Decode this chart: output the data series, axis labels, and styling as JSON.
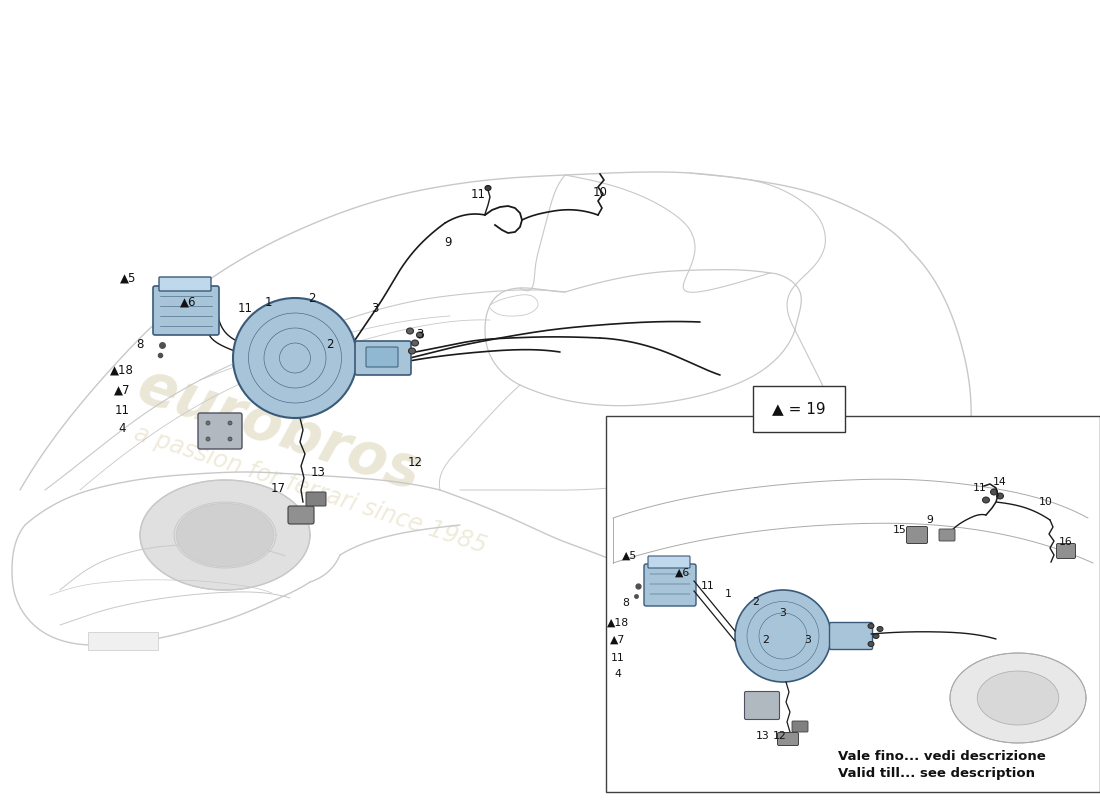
{
  "background_color": "#ffffff",
  "car_color": "#c8c8c8",
  "car_lw": 0.8,
  "parts_fill": "#a8c4d8",
  "parts_edge": "#3a5a7a",
  "line_color": "#1a1a1a",
  "label_color": "#111111",
  "wm_color1": "#d8d0b0",
  "wm_color2": "#e0d8b8",
  "legend_text": "▲ = 19",
  "inset_note1": "Vale fino... vedi descrizione",
  "inset_note2": "Valid till... see description",
  "fig_width": 11.0,
  "fig_height": 8.0,
  "dpi": 100
}
